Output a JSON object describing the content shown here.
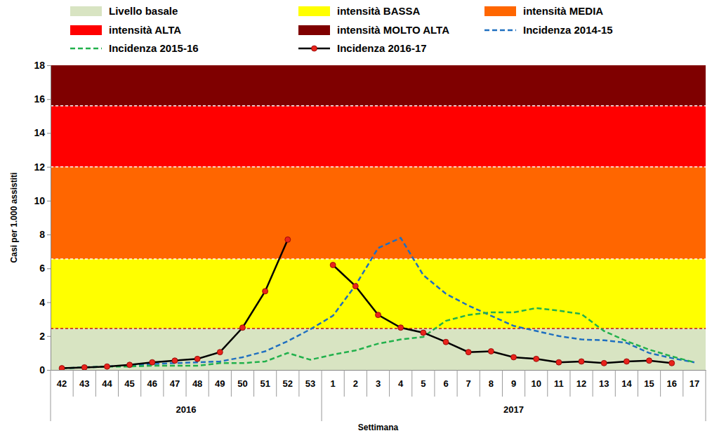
{
  "chart_data": {
    "type": "line",
    "x_label": "Settimana",
    "y_label": "Casi per 1.000 assistiti",
    "categories": [
      "42",
      "43",
      "44",
      "45",
      "46",
      "47",
      "48",
      "49",
      "50",
      "51",
      "52",
      "53",
      "1",
      "2",
      "3",
      "4",
      "5",
      "6",
      "7",
      "8",
      "9",
      "10",
      "11",
      "12",
      "13",
      "14",
      "15",
      "16",
      "17"
    ],
    "year_groups": [
      {
        "label": "2016",
        "first": "42",
        "last": "53"
      },
      {
        "label": "2017",
        "first": "1",
        "last": "17"
      }
    ],
    "bands": [
      {
        "name": "Livello basale",
        "color": "#d8e4c2",
        "from": 0,
        "to": 2.45
      },
      {
        "name": "intensità BASSA",
        "color": "#ffff00",
        "from": 2.45,
        "to": 6.55
      },
      {
        "name": "intensità MEDIA",
        "color": "#ff6600",
        "from": 6.55,
        "to": 12
      },
      {
        "name": "intensità ALTA",
        "color": "#ff0000",
        "from": 12,
        "to": 15.6
      },
      {
        "name": "intensità MOLTO ALTA",
        "color": "#7f0000",
        "from": 15.6,
        "to": 18
      }
    ],
    "series": [
      {
        "name": "Incidenza 2014-15",
        "color": "#1f6fc0",
        "line_style": "dashed",
        "values": [
          0.1,
          0.15,
          0.2,
          0.25,
          0.35,
          0.4,
          0.45,
          0.5,
          0.75,
          1.1,
          1.7,
          2.4,
          3.2,
          5.0,
          7.2,
          7.8,
          5.6,
          4.5,
          3.8,
          3.2,
          2.6,
          2.3,
          2.0,
          1.8,
          1.75,
          1.6,
          1.0,
          0.7,
          0.45
        ]
      },
      {
        "name": "Incidenza 2015-16",
        "color": "#22b14c",
        "line_style": "dashed",
        "values": [
          0.1,
          0.15,
          0.2,
          0.2,
          0.25,
          0.25,
          0.25,
          0.4,
          0.4,
          0.5,
          1.0,
          0.6,
          0.9,
          1.15,
          1.55,
          1.8,
          1.95,
          2.9,
          3.25,
          3.4,
          3.4,
          3.65,
          3.5,
          3.3,
          2.3,
          1.7,
          1.2,
          0.8,
          0.45
        ]
      },
      {
        "name": "Incidenza 2016-17",
        "color": "#000000",
        "line_style": "solid",
        "marker": "circle",
        "values": [
          0.1,
          0.15,
          0.2,
          0.3,
          0.45,
          0.55,
          0.65,
          1.05,
          2.5,
          4.65,
          7.7,
          null,
          6.2,
          4.95,
          3.25,
          2.5,
          2.2,
          1.65,
          1.05,
          1.1,
          0.75,
          0.65,
          0.45,
          0.5,
          0.4,
          0.5,
          0.55,
          0.4,
          null
        ]
      }
    ],
    "ylim": [
      0,
      18
    ],
    "yticks": [
      0,
      2,
      4,
      6,
      8,
      10,
      12,
      14,
      16,
      18
    ],
    "grid": false,
    "legend": "top"
  }
}
